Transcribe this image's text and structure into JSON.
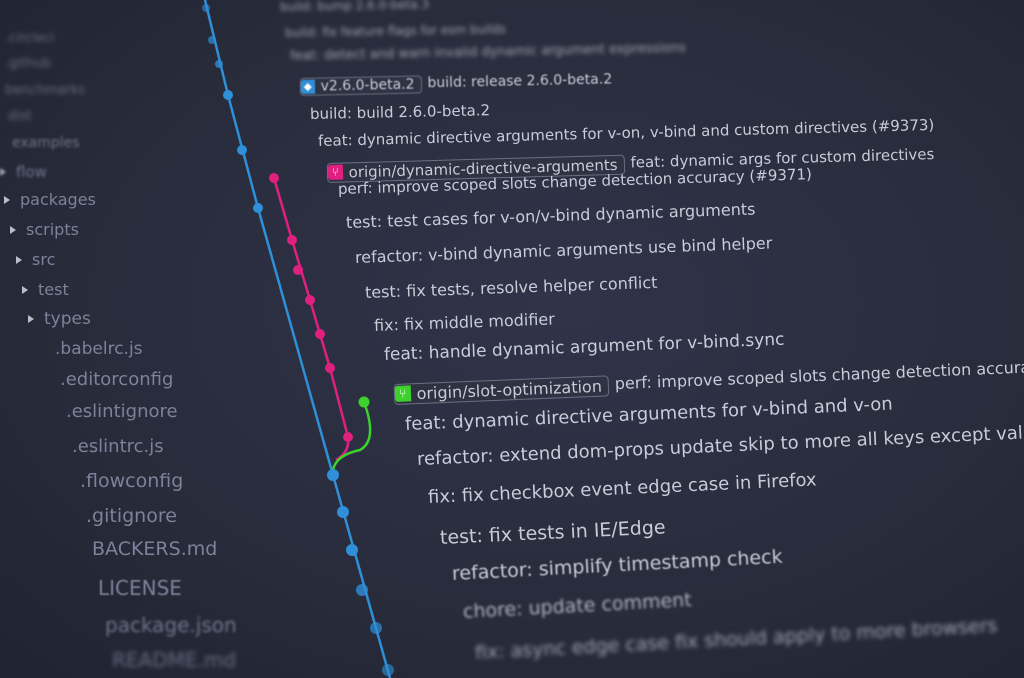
{
  "colors": {
    "background": "#2a2e3d",
    "main_branch": "#2f8fd8",
    "dynamic_branch": "#e0207f",
    "slot_branch": "#3ed12e",
    "text": "#c9ccd8",
    "sidebar_text": "#7c8299"
  },
  "sidebar": {
    "items": [
      {
        "label": ".circleci",
        "type": "folder"
      },
      {
        "label": ".github",
        "type": "folder"
      },
      {
        "label": "benchmarks",
        "type": "folder"
      },
      {
        "label": "dist",
        "type": "folder"
      },
      {
        "label": "examples",
        "type": "folder"
      },
      {
        "label": "flow",
        "type": "folder"
      },
      {
        "label": "packages",
        "type": "folder"
      },
      {
        "label": "scripts",
        "type": "folder"
      },
      {
        "label": "src",
        "type": "folder"
      },
      {
        "label": "test",
        "type": "folder"
      },
      {
        "label": "types",
        "type": "folder"
      },
      {
        "label": ".babelrc.js",
        "type": "file"
      },
      {
        "label": ".editorconfig",
        "type": "file"
      },
      {
        "label": ".eslintignore",
        "type": "file"
      },
      {
        "label": ".eslintrc.js",
        "type": "file"
      },
      {
        "label": ".flowconfig",
        "type": "file"
      },
      {
        "label": ".gitignore",
        "type": "file"
      },
      {
        "label": "BACKERS.md",
        "type": "file"
      },
      {
        "label": "LICENSE",
        "type": "file"
      },
      {
        "label": "package.json",
        "type": "file"
      },
      {
        "label": "README.md",
        "type": "file"
      }
    ]
  },
  "commits": [
    {
      "message": "build: bump 2.6.0-beta.3"
    },
    {
      "message": "build: fix feature flags for esm builds"
    },
    {
      "message": "feat: detect and warn invalid dynamic argument expressions"
    },
    {
      "tag": "v2.6.0-beta.2",
      "tag_icon": "tag-icon",
      "tag_color": "#2f8fd8",
      "message": "build: release 2.6.0-beta.2"
    },
    {
      "message": "build: build 2.6.0-beta.2"
    },
    {
      "message": "feat: dynamic directive arguments for v-on, v-bind and custom directives (#9373)"
    },
    {
      "tag": "origin/dynamic-directive-arguments",
      "tag_icon": "branch-icon",
      "tag_color": "#e0207f",
      "message": "feat: dynamic args for custom directives"
    },
    {
      "message": "perf: improve scoped slots change detection accuracy (#9371)"
    },
    {
      "message": "test: test cases for v-on/v-bind dynamic arguments"
    },
    {
      "message": "refactor: v-bind dynamic arguments use bind helper"
    },
    {
      "message": "test: fix tests, resolve helper conflict"
    },
    {
      "message": "fix: fix middle modifier"
    },
    {
      "message": "feat: handle dynamic argument for v-bind.sync"
    },
    {
      "tag": "origin/slot-optimization",
      "tag_icon": "branch-icon",
      "tag_color": "#3ed12e",
      "message": "perf: improve scoped slots change detection accuracy"
    },
    {
      "message": "feat: dynamic directive arguments for v-bind and v-on"
    },
    {
      "message": "refactor: extend dom-props update skip to more all keys except value"
    },
    {
      "message": "fix: fix checkbox event edge case in Firefox"
    },
    {
      "message": "test: fix tests in IE/Edge"
    },
    {
      "message": "refactor: simplify timestamp check"
    },
    {
      "message": "chore: update comment"
    },
    {
      "message": "fix: async edge case fix should apply to more browsers"
    }
  ]
}
